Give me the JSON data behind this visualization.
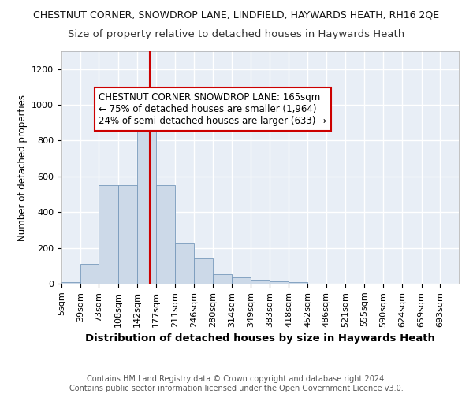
{
  "title": "CHESTNUT CORNER, SNOWDROP LANE, LINDFIELD, HAYWARDS HEATH, RH16 2QE",
  "subtitle": "Size of property relative to detached houses in Haywards Heath",
  "xlabel": "Distribution of detached houses by size in Haywards Heath",
  "ylabel": "Number of detached properties",
  "bin_labels": [
    "5sqm",
    "39sqm",
    "73sqm",
    "108sqm",
    "142sqm",
    "177sqm",
    "211sqm",
    "246sqm",
    "280sqm",
    "314sqm",
    "349sqm",
    "383sqm",
    "418sqm",
    "452sqm",
    "486sqm",
    "521sqm",
    "555sqm",
    "590sqm",
    "624sqm",
    "659sqm",
    "693sqm"
  ],
  "bin_edges": [
    5,
    39,
    73,
    108,
    142,
    177,
    211,
    246,
    280,
    314,
    349,
    383,
    418,
    452,
    486,
    521,
    555,
    590,
    624,
    659,
    693,
    727
  ],
  "bar_heights": [
    10,
    110,
    550,
    550,
    920,
    550,
    225,
    140,
    55,
    35,
    20,
    15,
    10,
    0,
    0,
    0,
    0,
    0,
    0,
    0,
    0
  ],
  "bar_color": "#ccd9e8",
  "bar_edgecolor": "#7799bb",
  "property_size": 165,
  "vline_color": "#cc0000",
  "annotation_text": "CHESTNUT CORNER SNOWDROP LANE: 165sqm\n← 75% of detached houses are smaller (1,964)\n24% of semi-detached houses are larger (633) →",
  "annotation_box_color": "#ffffff",
  "annotation_box_edgecolor": "#cc0000",
  "ylim": [
    0,
    1300
  ],
  "background_color": "#e8eef6",
  "grid_color": "#ffffff",
  "footer_text": "Contains HM Land Registry data © Crown copyright and database right 2024.\nContains public sector information licensed under the Open Government Licence v3.0.",
  "title_fontsize": 9.0,
  "subtitle_fontsize": 9.5,
  "xlabel_fontsize": 9.5,
  "ylabel_fontsize": 8.5,
  "tick_fontsize": 8,
  "footer_fontsize": 7,
  "annot_fontsize": 8.5
}
